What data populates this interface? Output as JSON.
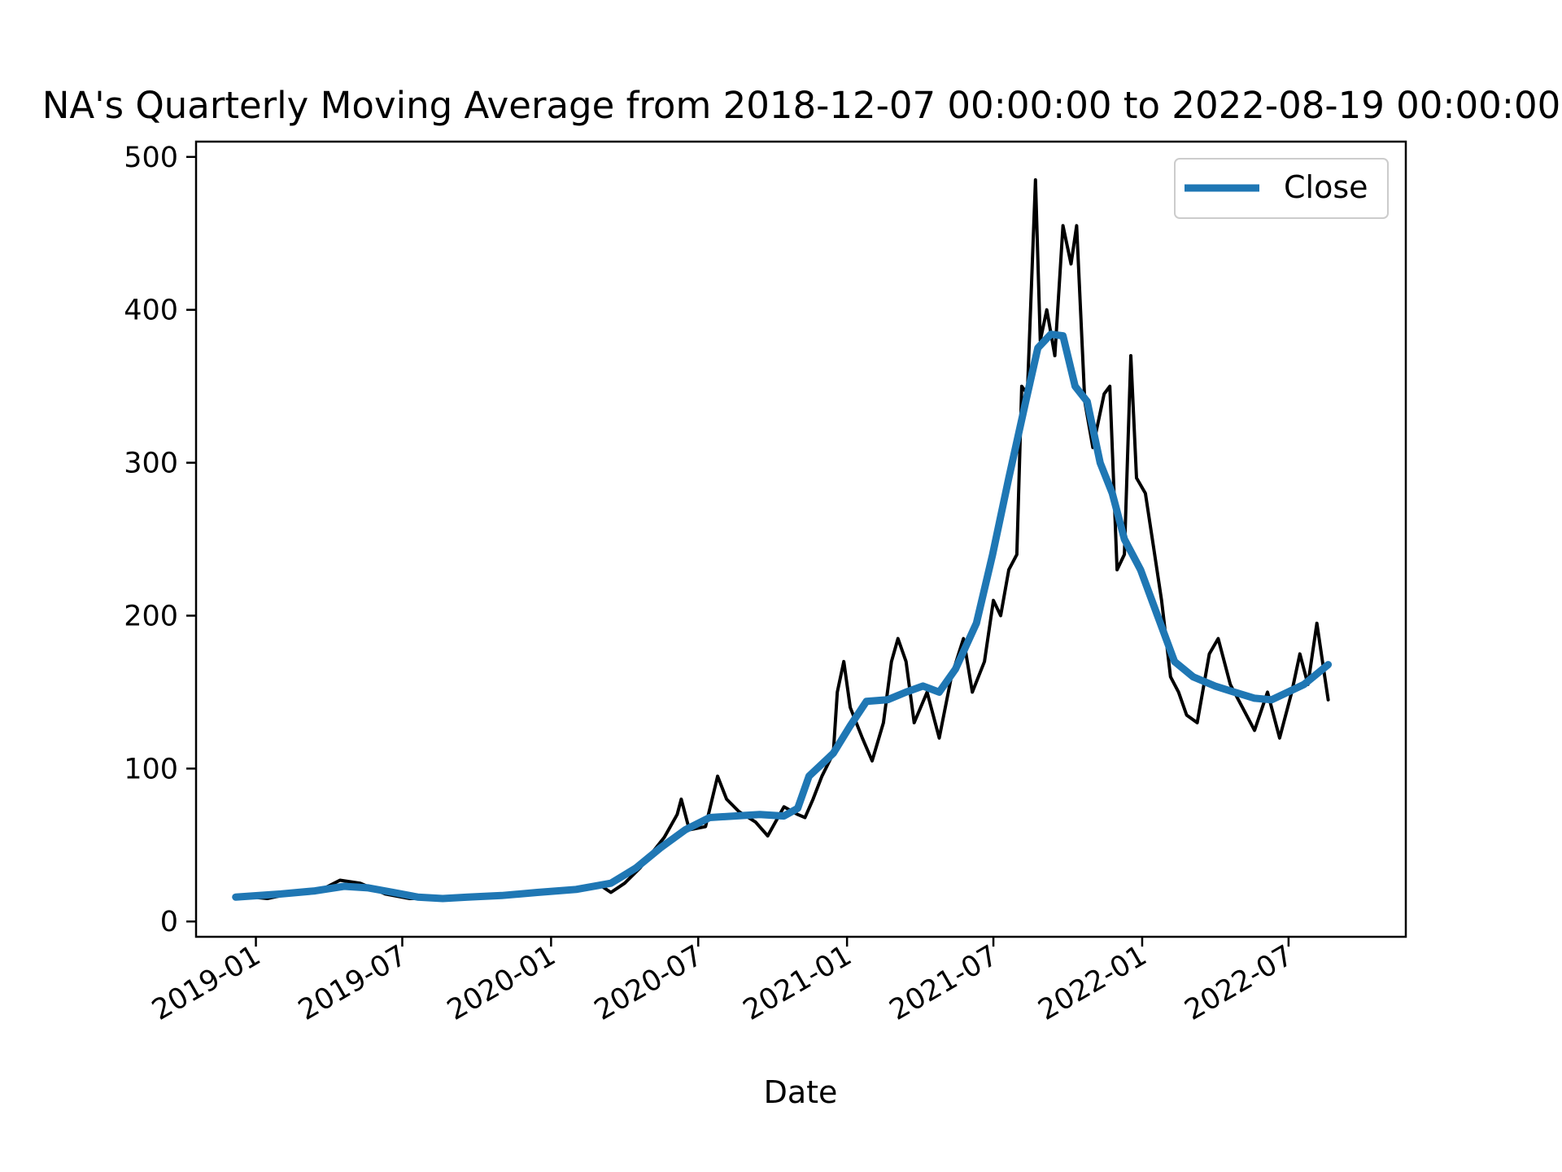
{
  "chart_data": {
    "type": "line",
    "title": "NA's Quarterly Moving Average from 2018-12-07 00:00:00 to 2022-08-19 00:00:00",
    "xlabel": "Date",
    "ylabel": "",
    "ylim": [
      -10,
      510
    ],
    "xlim": [
      "2018-10-19",
      "2022-11-23"
    ],
    "x_ticks": [
      "2019-01",
      "2019-07",
      "2020-01",
      "2020-07",
      "2021-01",
      "2021-07",
      "2022-01",
      "2022-07"
    ],
    "y_ticks": [
      0,
      100,
      200,
      300,
      400,
      500
    ],
    "grid": false,
    "legend": {
      "position": "top-right",
      "entries": [
        "Close"
      ]
    },
    "series": [
      {
        "color": "#000000",
        "points": [
          [
            "2018-12-07",
            17
          ],
          [
            "2019-01-15",
            15
          ],
          [
            "2019-02-20",
            19
          ],
          [
            "2019-03-20",
            20
          ],
          [
            "2019-04-15",
            27
          ],
          [
            "2019-05-10",
            25
          ],
          [
            "2019-06-10",
            18
          ],
          [
            "2019-07-10",
            15
          ],
          [
            "2019-08-15",
            15
          ],
          [
            "2019-09-15",
            16
          ],
          [
            "2019-10-15",
            16
          ],
          [
            "2019-11-15",
            18
          ],
          [
            "2019-12-15",
            20
          ],
          [
            "2020-01-15",
            20
          ],
          [
            "2020-02-15",
            22
          ],
          [
            "2020-03-01",
            24
          ],
          [
            "2020-03-15",
            19
          ],
          [
            "2020-04-01",
            25
          ],
          [
            "2020-04-20",
            35
          ],
          [
            "2020-05-05",
            45
          ],
          [
            "2020-05-20",
            55
          ],
          [
            "2020-06-05",
            70
          ],
          [
            "2020-06-10",
            80
          ],
          [
            "2020-06-20",
            60
          ],
          [
            "2020-07-10",
            62
          ],
          [
            "2020-07-25",
            95
          ],
          [
            "2020-08-05",
            80
          ],
          [
            "2020-08-20",
            72
          ],
          [
            "2020-09-10",
            65
          ],
          [
            "2020-09-25",
            56
          ],
          [
            "2020-10-15",
            75
          ],
          [
            "2020-11-01",
            70
          ],
          [
            "2020-11-10",
            68
          ],
          [
            "2020-11-20",
            80
          ],
          [
            "2020-12-01",
            95
          ],
          [
            "2020-12-15",
            110
          ],
          [
            "2020-12-20",
            150
          ],
          [
            "2020-12-28",
            170
          ],
          [
            "2021-01-05",
            140
          ],
          [
            "2021-01-20",
            120
          ],
          [
            "2021-02-01",
            105
          ],
          [
            "2021-02-15",
            130
          ],
          [
            "2021-02-25",
            170
          ],
          [
            "2021-03-05",
            185
          ],
          [
            "2021-03-15",
            170
          ],
          [
            "2021-03-25",
            130
          ],
          [
            "2021-04-10",
            150
          ],
          [
            "2021-04-25",
            120
          ],
          [
            "2021-05-10",
            160
          ],
          [
            "2021-05-25",
            185
          ],
          [
            "2021-06-05",
            150
          ],
          [
            "2021-06-20",
            170
          ],
          [
            "2021-07-01",
            210
          ],
          [
            "2021-07-10",
            200
          ],
          [
            "2021-07-20",
            230
          ],
          [
            "2021-07-30",
            240
          ],
          [
            "2021-08-05",
            350
          ],
          [
            "2021-08-12",
            345
          ],
          [
            "2021-08-22",
            485
          ],
          [
            "2021-08-28",
            380
          ],
          [
            "2021-09-05",
            400
          ],
          [
            "2021-09-15",
            370
          ],
          [
            "2021-09-25",
            455
          ],
          [
            "2021-10-05",
            430
          ],
          [
            "2021-10-12",
            455
          ],
          [
            "2021-10-22",
            340
          ],
          [
            "2021-11-01",
            310
          ],
          [
            "2021-11-15",
            345
          ],
          [
            "2021-11-22",
            350
          ],
          [
            "2021-12-01",
            230
          ],
          [
            "2021-12-10",
            240
          ],
          [
            "2021-12-18",
            370
          ],
          [
            "2021-12-25",
            290
          ],
          [
            "2022-01-05",
            280
          ],
          [
            "2022-01-15",
            245
          ],
          [
            "2022-01-25",
            210
          ],
          [
            "2022-02-05",
            160
          ],
          [
            "2022-02-15",
            150
          ],
          [
            "2022-02-25",
            135
          ],
          [
            "2022-03-10",
            130
          ],
          [
            "2022-03-25",
            175
          ],
          [
            "2022-04-05",
            185
          ],
          [
            "2022-04-20",
            155
          ],
          [
            "2022-05-05",
            140
          ],
          [
            "2022-05-20",
            125
          ],
          [
            "2022-06-05",
            150
          ],
          [
            "2022-06-20",
            120
          ],
          [
            "2022-07-05",
            150
          ],
          [
            "2022-07-15",
            175
          ],
          [
            "2022-07-25",
            155
          ],
          [
            "2022-08-05",
            195
          ],
          [
            "2022-08-12",
            170
          ],
          [
            "2022-08-19",
            145
          ]
        ]
      },
      {
        "name": "Close",
        "color": "#1f77b4",
        "points": [
          [
            "2018-12-07",
            16
          ],
          [
            "2019-02-01",
            18
          ],
          [
            "2019-03-15",
            20
          ],
          [
            "2019-04-20",
            23
          ],
          [
            "2019-05-20",
            22
          ],
          [
            "2019-06-20",
            19
          ],
          [
            "2019-07-20",
            16
          ],
          [
            "2019-08-20",
            15
          ],
          [
            "2019-09-20",
            16
          ],
          [
            "2019-11-01",
            17
          ],
          [
            "2019-12-15",
            19
          ],
          [
            "2020-02-01",
            21
          ],
          [
            "2020-03-15",
            25
          ],
          [
            "2020-04-15",
            35
          ],
          [
            "2020-05-15",
            48
          ],
          [
            "2020-06-15",
            60
          ],
          [
            "2020-07-15",
            68
          ],
          [
            "2020-08-15",
            69
          ],
          [
            "2020-09-15",
            70
          ],
          [
            "2020-10-15",
            69
          ],
          [
            "2020-11-01",
            74
          ],
          [
            "2020-11-15",
            95
          ],
          [
            "2020-12-15",
            110
          ],
          [
            "2021-01-05",
            128
          ],
          [
            "2021-01-25",
            144
          ],
          [
            "2021-02-20",
            145
          ],
          [
            "2021-03-15",
            150
          ],
          [
            "2021-04-05",
            154
          ],
          [
            "2021-04-25",
            150
          ],
          [
            "2021-05-15",
            165
          ],
          [
            "2021-06-10",
            195
          ],
          [
            "2021-06-30",
            240
          ],
          [
            "2021-07-20",
            290
          ],
          [
            "2021-08-10",
            340
          ],
          [
            "2021-08-25",
            375
          ],
          [
            "2021-09-10",
            384
          ],
          [
            "2021-09-25",
            383
          ],
          [
            "2021-10-10",
            350
          ],
          [
            "2021-10-25",
            340
          ],
          [
            "2021-11-10",
            300
          ],
          [
            "2021-11-25",
            280
          ],
          [
            "2021-12-10",
            250
          ],
          [
            "2021-12-30",
            230
          ],
          [
            "2022-01-20",
            200
          ],
          [
            "2022-02-10",
            170
          ],
          [
            "2022-03-05",
            160
          ],
          [
            "2022-04-01",
            154
          ],
          [
            "2022-04-25",
            150
          ],
          [
            "2022-05-20",
            146
          ],
          [
            "2022-06-10",
            145
          ],
          [
            "2022-06-30",
            150
          ],
          [
            "2022-07-20",
            155
          ],
          [
            "2022-08-19",
            168
          ]
        ]
      }
    ]
  }
}
